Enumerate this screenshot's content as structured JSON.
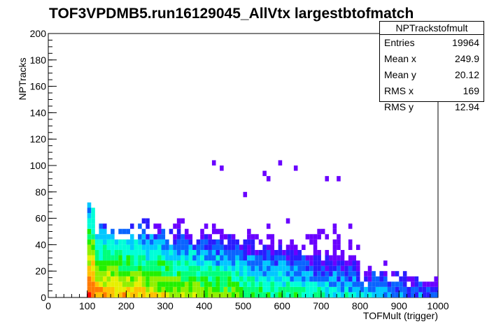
{
  "title": "TOF3VPDMB5.run16129045_AllVtx largestbtofmatch",
  "stats": {
    "name": "NPTrackstofmult",
    "rows": [
      {
        "label": "Entries",
        "value": "19964"
      },
      {
        "label": "Mean x",
        "value": "249.9"
      },
      {
        "label": "Mean y",
        "value": "20.12"
      },
      {
        "label": "RMS x",
        "value": "169"
      },
      {
        "label": "RMS y",
        "value": "12.94"
      }
    ]
  },
  "chart_data": {
    "type": "heatmap",
    "title": "TOF3VPDMB5.run16129045_AllVtx largestbtofmatch",
    "xlabel": "TOFMult (trigger)",
    "ylabel": "NPTracks",
    "xlim": [
      0,
      1000
    ],
    "ylim": [
      0,
      200
    ],
    "xticks": [
      0,
      100,
      200,
      300,
      400,
      500,
      600,
      700,
      800,
      900,
      1000
    ],
    "yticks": [
      0,
      20,
      40,
      60,
      80,
      100,
      120,
      140,
      160,
      180,
      200
    ],
    "bin_width_x": 10,
    "bin_width_y": 4,
    "colormap": "ROOT rainbow (purple = low, red = high)",
    "density_bands": [
      {
        "x_range": [
          100,
          120
        ],
        "y_range": [
          0,
          60
        ],
        "level": "highest"
      },
      {
        "x_range": [
          120,
          400
        ],
        "y_range": [
          0,
          20
        ],
        "level": "high"
      },
      {
        "x_range": [
          120,
          600
        ],
        "y_range": [
          0,
          40
        ],
        "level": "medium"
      },
      {
        "x_range": [
          400,
          800
        ],
        "y_range": [
          0,
          60
        ],
        "level": "low"
      },
      {
        "x_range": [
          800,
          1000
        ],
        "y_range": [
          0,
          24
        ],
        "level": "lowest"
      }
    ],
    "outliers": [
      {
        "x": 425,
        "y": 100
      },
      {
        "x": 445,
        "y": 96
      },
      {
        "x": 595,
        "y": 102
      },
      {
        "x": 555,
        "y": 94
      },
      {
        "x": 565,
        "y": 88
      },
      {
        "x": 635,
        "y": 96
      },
      {
        "x": 715,
        "y": 88
      },
      {
        "x": 745,
        "y": 88
      },
      {
        "x": 505,
        "y": 76
      }
    ]
  }
}
